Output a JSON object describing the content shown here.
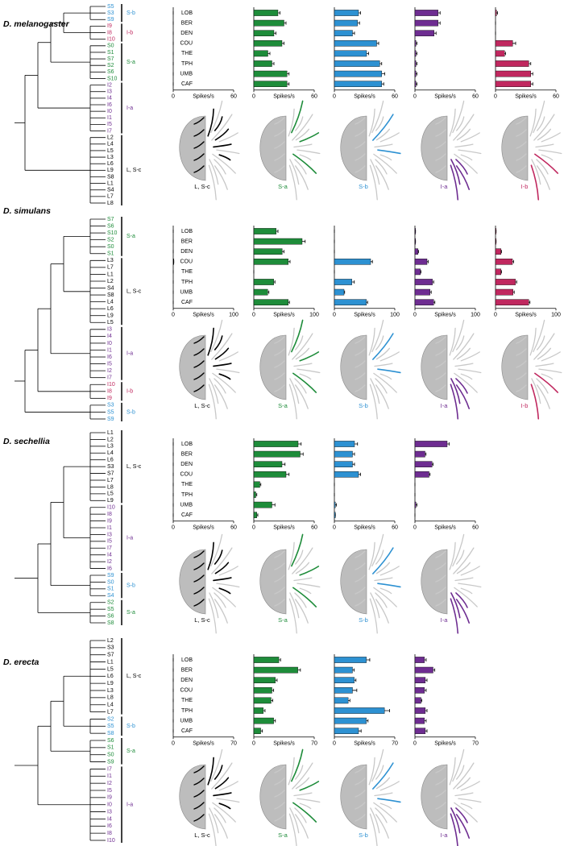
{
  "panels": [
    {
      "species": "D. melanogaster",
      "categories": [
        "LOB",
        "BER",
        "DEN",
        "COU",
        "THE",
        "TPH",
        "UMB",
        "CAF"
      ],
      "clusters": [
        {
          "label": "S-b",
          "color": "#2d91d2",
          "leaves": [
            "S5",
            "S3",
            "S9"
          ]
        },
        {
          "label": "I-b",
          "color": "#c0285f",
          "leaves": [
            "I9",
            "I8",
            "I10"
          ]
        },
        {
          "label": "S-a",
          "color": "#1e8c3a",
          "leaves": [
            "S0",
            "S1",
            "S7",
            "S2",
            "S6",
            "S10"
          ]
        },
        {
          "label": "I-a",
          "color": "#6e2d91",
          "leaves": [
            "I2",
            "I3",
            "I4",
            "I6",
            "I0",
            "I1",
            "I5",
            "I7"
          ]
        },
        {
          "label": "L, S-c",
          "color": "#000000",
          "leaves": [
            "L2",
            "L4",
            "L5",
            "L3",
            "L6",
            "L9",
            "S8",
            "L1",
            "S4",
            "L7",
            "L8"
          ]
        }
      ],
      "chart_data": [
        {
          "type": "bar",
          "caption": "L, S-c",
          "color": "#000000",
          "values": [
            0,
            0,
            0,
            0,
            0,
            0,
            0,
            0
          ],
          "errors": [
            0,
            0,
            0,
            0,
            0,
            0,
            0,
            0
          ],
          "xlim": [
            0,
            60
          ],
          "xticks": [
            0,
            60
          ],
          "xlabel": "Spikes/s"
        },
        {
          "type": "bar",
          "caption": "S-a",
          "color": "#1e8c3a",
          "values": [
            24,
            30,
            20,
            28,
            14,
            18,
            33,
            33
          ],
          "errors": [
            2,
            2,
            2,
            2,
            2,
            2,
            2,
            2
          ],
          "xlim": [
            0,
            60
          ],
          "xticks": [
            0,
            60
          ],
          "xlabel": "Spikes/s"
        },
        {
          "type": "bar",
          "caption": "S-b",
          "color": "#2d91d2",
          "values": [
            24,
            23,
            18,
            42,
            32,
            45,
            47,
            47
          ],
          "errors": [
            2,
            2,
            2,
            2,
            2,
            2,
            3,
            2
          ],
          "xlim": [
            0,
            60
          ],
          "xticks": [
            0,
            60
          ],
          "xlabel": "Spikes/s"
        },
        {
          "type": "bar",
          "caption": "I-a",
          "color": "#6e2d91",
          "values": [
            23,
            23,
            19,
            1,
            1,
            1,
            1,
            1
          ],
          "errors": [
            2,
            2,
            2,
            1,
            1,
            1,
            1,
            1
          ],
          "xlim": [
            0,
            60
          ],
          "xticks": [
            0,
            60
          ],
          "xlabel": "Spikes/s"
        },
        {
          "type": "bar",
          "caption": "I-b",
          "color": "#c0285f",
          "values": [
            1,
            0,
            0,
            17,
            9,
            33,
            35,
            35
          ],
          "errors": [
            1,
            0,
            0,
            3,
            1,
            2,
            2,
            2
          ],
          "xlim": [
            0,
            60
          ],
          "xticks": [
            0,
            60
          ],
          "xlabel": "Spikes/s"
        }
      ]
    },
    {
      "species": "D. simulans",
      "categories": [
        "LOB",
        "BER",
        "DEN",
        "COU",
        "THE",
        "TPH",
        "UMB",
        "CAF"
      ],
      "clusters": [
        {
          "label": "S-a",
          "color": "#1e8c3a",
          "leaves": [
            "S7",
            "S6",
            "S10",
            "S2",
            "S0",
            "S1"
          ]
        },
        {
          "label": "L, S-c",
          "color": "#000000",
          "leaves": [
            "L3",
            "L7",
            "L1",
            "L2",
            "S4",
            "S8",
            "L4",
            "L6",
            "L9",
            "L5"
          ]
        },
        {
          "label": "I-a",
          "color": "#6e2d91",
          "leaves": [
            "I3",
            "I4",
            "I0",
            "I1",
            "I6",
            "I5",
            "I2",
            "I7"
          ]
        },
        {
          "label": "I-b",
          "color": "#c0285f",
          "leaves": [
            "I10",
            "I8",
            "I9"
          ]
        },
        {
          "label": "S-b",
          "color": "#2d91d2",
          "leaves": [
            "S3",
            "S5",
            "S9"
          ]
        }
      ],
      "chart_data": [
        {
          "type": "bar",
          "caption": "L, S-c",
          "color": "#000000",
          "values": [
            0,
            0,
            0,
            1,
            0,
            0,
            0,
            0
          ],
          "errors": [
            0,
            0,
            0,
            0,
            0,
            0,
            0,
            0
          ],
          "xlim": [
            0,
            100
          ],
          "xticks": [
            0,
            100
          ],
          "xlabel": "Spikes/s"
        },
        {
          "type": "bar",
          "caption": "S-a",
          "color": "#1e8c3a",
          "values": [
            37,
            80,
            47,
            57,
            0,
            33,
            23,
            57
          ],
          "errors": [
            3,
            5,
            3,
            3,
            0,
            2,
            2,
            2
          ],
          "xlim": [
            0,
            100
          ],
          "xticks": [
            0,
            100
          ],
          "xlabel": "Spikes/s"
        },
        {
          "type": "bar",
          "caption": "S-b",
          "color": "#2d91d2",
          "values": [
            0,
            0,
            0,
            60,
            0,
            29,
            16,
            53
          ],
          "errors": [
            0,
            0,
            0,
            3,
            0,
            4,
            1,
            2
          ],
          "xlim": [
            0,
            100
          ],
          "xticks": [
            0,
            100
          ],
          "xlabel": "Spikes/s"
        },
        {
          "type": "bar",
          "caption": "I-a",
          "color": "#6e2d91",
          "values": [
            1,
            1,
            5,
            20,
            9,
            29,
            25,
            31
          ],
          "errors": [
            0,
            0,
            1,
            2,
            1,
            2,
            2,
            2
          ],
          "xlim": [
            0,
            100
          ],
          "xticks": [
            0,
            100
          ],
          "xlabel": "Spikes/s"
        },
        {
          "type": "bar",
          "caption": "I-b",
          "color": "#c0285f",
          "values": [
            1,
            1,
            9,
            28,
            9,
            33,
            29,
            55
          ],
          "errors": [
            0,
            0,
            1,
            2,
            1,
            2,
            2,
            2
          ],
          "xlim": [
            0,
            100
          ],
          "xticks": [
            0,
            100
          ],
          "xlabel": "Spikes/s"
        }
      ]
    },
    {
      "species": "D. sechellia",
      "categories": [
        "LOB",
        "BER",
        "DEN",
        "COU",
        "THE",
        "TPH",
        "UMB",
        "CAF"
      ],
      "clusters": [
        {
          "label": "L, S-c",
          "color": "#000000",
          "leaves": [
            "L1",
            "L2",
            "L3",
            "L4",
            "L6",
            "S3",
            "S7",
            "L7",
            "L8",
            "L5",
            "L9"
          ]
        },
        {
          "label": "I-a",
          "color": "#6e2d91",
          "leaves": [
            "I10",
            "I8",
            "I9",
            "I1",
            "I3",
            "I5",
            "I7",
            "I4",
            "I2",
            "I6"
          ]
        },
        {
          "label": "S-b",
          "color": "#2d91d2",
          "leaves": [
            "S9",
            "S0",
            "S1",
            "S4"
          ]
        },
        {
          "label": "S-a",
          "color": "#1e8c3a",
          "leaves": [
            "S2",
            "S5",
            "S6",
            "S8"
          ]
        }
      ],
      "chart_data": [
        {
          "type": "bar",
          "caption": "L, S-c",
          "color": "#000000",
          "values": [
            0,
            0,
            0,
            0,
            0,
            0,
            0,
            0
          ],
          "errors": [
            0,
            0,
            0,
            0,
            0,
            0,
            0,
            0
          ],
          "xlim": [
            0,
            60
          ],
          "xticks": [
            0,
            60
          ],
          "xlabel": "Spikes/s"
        },
        {
          "type": "bar",
          "caption": "S-a",
          "color": "#1e8c3a",
          "values": [
            44,
            46,
            28,
            32,
            6,
            2,
            18,
            3
          ],
          "errors": [
            3,
            3,
            3,
            3,
            1,
            1,
            3,
            1
          ],
          "xlim": [
            0,
            60
          ],
          "xticks": [
            0,
            60
          ],
          "xlabel": "Spikes/s"
        },
        {
          "type": "bar",
          "caption": "S-b",
          "color": "#2d91d2",
          "values": [
            20,
            18,
            18,
            24,
            0,
            0,
            1,
            1
          ],
          "errors": [
            3,
            2,
            2,
            2,
            0,
            0,
            1,
            0
          ],
          "xlim": [
            0,
            60
          ],
          "xticks": [
            0,
            60
          ],
          "xlabel": "Spikes/s"
        },
        {
          "type": "bar",
          "caption": "I-a",
          "color": "#6e2d91",
          "values": [
            32,
            10,
            17,
            14,
            0,
            0,
            1,
            0
          ],
          "errors": [
            2,
            1,
            1,
            1,
            0,
            0,
            1,
            0
          ],
          "xlim": [
            0,
            60
          ],
          "xticks": [
            0,
            60
          ],
          "xlabel": "Spikes/s"
        }
      ]
    },
    {
      "species": "D. erecta",
      "categories": [
        "LOB",
        "BER",
        "DEN",
        "COU",
        "THE",
        "TPH",
        "UMB",
        "CAF"
      ],
      "clusters": [
        {
          "label": "L, S-c",
          "color": "#000000",
          "leaves": [
            "L2",
            "S3",
            "S7",
            "L1",
            "L5",
            "L6",
            "L9",
            "L3",
            "L8",
            "L4",
            "L7"
          ]
        },
        {
          "label": "S-b",
          "color": "#2d91d2",
          "leaves": [
            "S2",
            "S5",
            "S8"
          ]
        },
        {
          "label": "S-a",
          "color": "#1e8c3a",
          "leaves": [
            "S6",
            "S1",
            "S0",
            "S9"
          ]
        },
        {
          "label": "I-a",
          "color": "#6e2d91",
          "leaves": [
            "I7",
            "I1",
            "I2",
            "I5",
            "I9",
            "I0",
            "I3",
            "I4",
            "I6",
            "I8",
            "I10"
          ]
        }
      ],
      "chart_data": [
        {
          "type": "bar",
          "caption": "L, S-c",
          "color": "#000000",
          "values": [
            0,
            0,
            0,
            0,
            0,
            0,
            0,
            0
          ],
          "errors": [
            0,
            0,
            0,
            0,
            0,
            0,
            0,
            0
          ],
          "xlim": [
            0,
            70
          ],
          "xticks": [
            0,
            70
          ],
          "xlabel": "Spikes/s"
        },
        {
          "type": "bar",
          "caption": "S-a",
          "color": "#1e8c3a",
          "values": [
            29,
            51,
            25,
            21,
            20,
            11,
            23,
            8
          ],
          "errors": [
            2,
            3,
            2,
            2,
            2,
            2,
            2,
            2
          ],
          "xlim": [
            0,
            70
          ],
          "xticks": [
            0,
            70
          ],
          "xlabel": "Spikes/s"
        },
        {
          "type": "bar",
          "caption": "S-b",
          "color": "#2d91d2",
          "values": [
            37,
            21,
            23,
            21,
            16,
            58,
            37,
            28
          ],
          "errors": [
            4,
            2,
            2,
            5,
            2,
            6,
            2,
            3
          ],
          "xlim": [
            0,
            70
          ],
          "xticks": [
            0,
            70
          ],
          "xlabel": "Spikes/s"
        },
        {
          "type": "bar",
          "caption": "I-a",
          "color": "#6e2d91",
          "values": [
            11,
            21,
            12,
            11,
            7,
            12,
            11,
            12
          ],
          "errors": [
            2,
            2,
            2,
            2,
            1,
            2,
            2,
            2
          ],
          "xlim": [
            0,
            70
          ],
          "xticks": [
            0,
            70
          ],
          "xlabel": "Spikes/s"
        }
      ]
    }
  ]
}
